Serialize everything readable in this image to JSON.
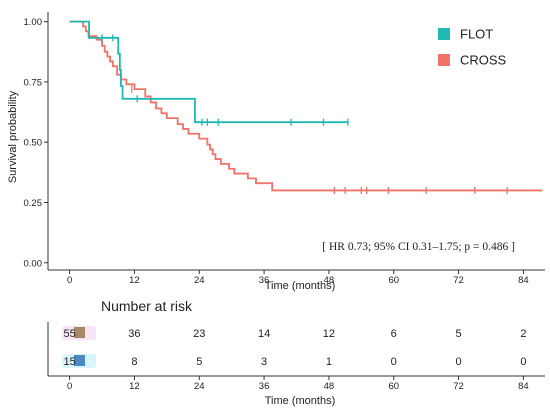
{
  "chart_data": {
    "type": "line",
    "subtype": "kaplan-meier",
    "xlabel": "Time (months)",
    "ylabel": "Survival probability",
    "xlim": [
      -4,
      88
    ],
    "ylim": [
      -0.03,
      1.04
    ],
    "xticks": [
      "0",
      "12",
      "24",
      "36",
      "48",
      "60",
      "72",
      "84"
    ],
    "yticks": [
      "0.00",
      "0.25",
      "0.50",
      "0.75",
      "1.00"
    ],
    "grid": false,
    "legend_position": "top-right",
    "annotation": "[ HR 0.73; 95% CI 0.31–1.75; p = 0.486 ]",
    "series": [
      {
        "name": "FLOT",
        "color": "#1fb8b3",
        "steps": [
          [
            0,
            1.0
          ],
          [
            3.6,
            0.933
          ],
          [
            9.0,
            0.867
          ],
          [
            9.3,
            0.8
          ],
          [
            9.5,
            0.733
          ],
          [
            9.8,
            0.68
          ],
          [
            23.2,
            0.583
          ],
          [
            51.5,
            0.583
          ]
        ],
        "censors": [
          [
            6,
            0.933
          ],
          [
            8,
            0.933
          ],
          [
            12.5,
            0.68
          ],
          [
            24.5,
            0.583
          ],
          [
            25.5,
            0.583
          ],
          [
            27.5,
            0.583
          ],
          [
            41,
            0.583
          ],
          [
            47,
            0.583
          ],
          [
            51.5,
            0.583
          ]
        ]
      },
      {
        "name": "CROSS",
        "color": "#f07268",
        "steps": [
          [
            0,
            1.0
          ],
          [
            2.5,
            0.98
          ],
          [
            3.0,
            0.96
          ],
          [
            3.5,
            0.94
          ],
          [
            5.0,
            0.925
          ],
          [
            6.0,
            0.9
          ],
          [
            6.5,
            0.875
          ],
          [
            7.0,
            0.855
          ],
          [
            7.5,
            0.835
          ],
          [
            8.0,
            0.815
          ],
          [
            8.8,
            0.78
          ],
          [
            9.5,
            0.76
          ],
          [
            10.5,
            0.74
          ],
          [
            12.0,
            0.72
          ],
          [
            14.0,
            0.69
          ],
          [
            15.0,
            0.665
          ],
          [
            16.0,
            0.64
          ],
          [
            17.0,
            0.62
          ],
          [
            18.0,
            0.6
          ],
          [
            20.0,
            0.575
          ],
          [
            21.0,
            0.555
          ],
          [
            22.0,
            0.535
          ],
          [
            24.0,
            0.515
          ],
          [
            25.5,
            0.49
          ],
          [
            26.0,
            0.47
          ],
          [
            26.5,
            0.45
          ],
          [
            27.0,
            0.43
          ],
          [
            28.0,
            0.41
          ],
          [
            29.5,
            0.39
          ],
          [
            30.5,
            0.37
          ],
          [
            33.0,
            0.35
          ],
          [
            34.5,
            0.33
          ],
          [
            37.5,
            0.3
          ],
          [
            87.5,
            0.3
          ]
        ],
        "censors": [
          [
            11.5,
            0.72
          ],
          [
            49,
            0.3
          ],
          [
            51,
            0.3
          ],
          [
            54,
            0.3
          ],
          [
            55,
            0.3
          ],
          [
            59,
            0.3
          ],
          [
            66,
            0.3
          ],
          [
            75,
            0.3
          ],
          [
            81,
            0.3
          ]
        ]
      }
    ],
    "risk_table": {
      "title": "Number at risk",
      "xlabel": "Time (months)",
      "times": [
        "0",
        "12",
        "24",
        "36",
        "48",
        "60",
        "72",
        "84"
      ],
      "rows": [
        {
          "series": "CROSS",
          "swatch_color": "#a98866",
          "glow_color": "#f7e4f5",
          "counts": [
            "55",
            "36",
            "23",
            "14",
            "12",
            "6",
            "5",
            "2"
          ]
        },
        {
          "series": "FLOT",
          "swatch_color": "#4d89c4",
          "glow_color": "#d9f4fb",
          "counts": [
            "15",
            "8",
            "5",
            "3",
            "1",
            "0",
            "0",
            "0"
          ]
        }
      ]
    }
  }
}
